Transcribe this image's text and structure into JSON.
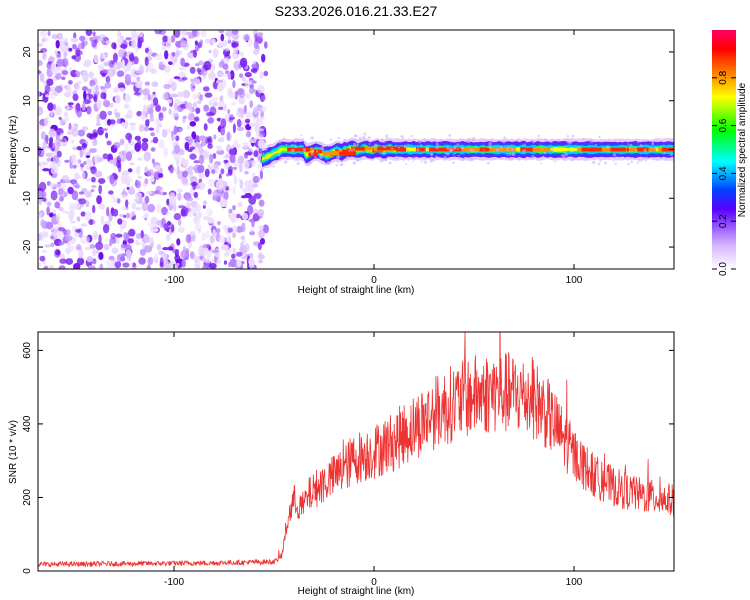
{
  "title": "S233.2026.016.21.33.E27",
  "colors": {
    "signal_line": "#ee3333",
    "noise_purple": "#7a1ef0",
    "frame": "#000000"
  },
  "chart_data": [
    {
      "type": "heatmap",
      "title": "S233.2026.016.21.33.E27",
      "xlabel": "Height of straight line (km)",
      "ylabel": "Frequency (Hz)",
      "xlim": [
        -168,
        150
      ],
      "ylim": [
        -24.5,
        24.5
      ],
      "xticks": [
        {
          "v": -100,
          "label": "-100"
        },
        {
          "v": 0,
          "label": "0"
        },
        {
          "v": 100,
          "label": "100"
        }
      ],
      "yticks": [
        {
          "v": 20,
          "label": "20"
        },
        {
          "v": 10,
          "label": "10"
        },
        {
          "v": 0,
          "label": "0"
        },
        {
          "v": -10,
          "label": "-10"
        },
        {
          "v": -20,
          "label": "-20"
        }
      ],
      "noise_region_x": [
        -168,
        -54
      ],
      "signal_region_x": [
        -56,
        150
      ],
      "signal_frequency_hz": 0,
      "colorbar": {
        "label": "Normalized spectral amplitude",
        "range": [
          0,
          1
        ],
        "ticks": [
          {
            "v": 0.0,
            "label": "0.0"
          },
          {
            "v": 0.2,
            "label": "0.2"
          },
          {
            "v": 0.4,
            "label": "0.4"
          },
          {
            "v": 0.6,
            "label": "0.6"
          },
          {
            "v": 0.8,
            "label": "0.8"
          }
        ]
      }
    },
    {
      "type": "line",
      "xlabel": "Height of straight line (km)",
      "ylabel": "SNR (10 * v/v)",
      "xlim": [
        -168,
        150
      ],
      "ylim": [
        0,
        650
      ],
      "xticks": [
        {
          "v": -100,
          "label": "-100"
        },
        {
          "v": 0,
          "label": "0"
        },
        {
          "v": 100,
          "label": "100"
        }
      ],
      "yticks": [
        {
          "v": 0,
          "label": "0"
        },
        {
          "v": 200,
          "label": "200"
        },
        {
          "v": 400,
          "label": "400"
        },
        {
          "v": 600,
          "label": "600"
        }
      ],
      "series": [
        {
          "name": "SNR",
          "x": [
            -168,
            -120,
            -80,
            -50,
            -46,
            -44,
            -42,
            -40,
            -36,
            -32,
            -28,
            -20,
            -15,
            -10,
            0,
            10,
            20,
            30,
            40,
            50,
            60,
            70,
            80,
            85,
            90,
            100,
            110,
            120,
            130,
            140,
            150
          ],
          "y": [
            18,
            20,
            22,
            25,
            45,
            120,
            170,
            200,
            180,
            220,
            240,
            270,
            290,
            320,
            340,
            370,
            410,
            450,
            480,
            500,
            510,
            505,
            490,
            460,
            420,
            330,
            270,
            240,
            220,
            210,
            200
          ]
        }
      ]
    }
  ]
}
